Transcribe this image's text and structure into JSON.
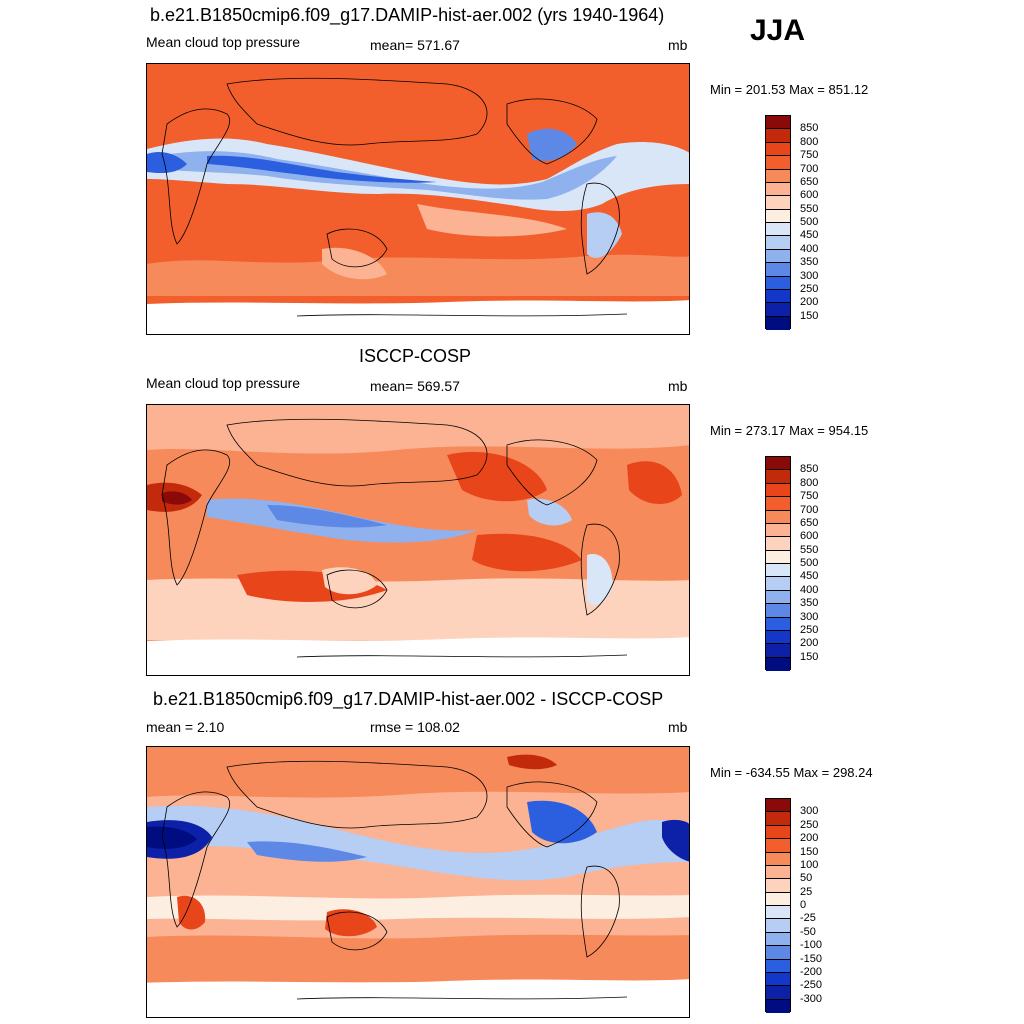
{
  "season": "JJA",
  "panels": [
    {
      "title": "b.e21.B1850cmip6.f09_g17.DAMIP-hist-aer.002 (yrs 1940-1964)",
      "left_label": "Mean cloud top pressure",
      "center_label": "mean= 571.67",
      "units": "mb",
      "minmax": "Min = 201.53 Max = 851.12",
      "levels": [
        "850",
        "800",
        "750",
        "700",
        "650",
        "600",
        "550",
        "500",
        "450",
        "400",
        "350",
        "300",
        "250",
        "200",
        "150"
      ],
      "colors": [
        "#8a0a0a",
        "#c32a0b",
        "#e8461a",
        "#f25f2c",
        "#f78a5b",
        "#fbb393",
        "#fdd3bd",
        "#fdeee2",
        "#d8e6f8",
        "#b6cdf4",
        "#8fb1ee",
        "#5d88e6",
        "#2c5ee0",
        "#1338c9",
        "#0d20a8",
        "#000d80"
      ],
      "background": "#f25f2c"
    },
    {
      "title": "ISCCP-COSP",
      "left_label": "Mean cloud top pressure",
      "center_label": "mean= 569.57",
      "units": "mb",
      "minmax": "Min = 273.17 Max = 954.15",
      "levels": [
        "850",
        "800",
        "750",
        "700",
        "650",
        "600",
        "550",
        "500",
        "450",
        "400",
        "350",
        "300",
        "250",
        "200",
        "150"
      ],
      "colors": [
        "#8a0a0a",
        "#c32a0b",
        "#e8461a",
        "#f25f2c",
        "#f78a5b",
        "#fbb393",
        "#fdd3bd",
        "#fdeee2",
        "#d8e6f8",
        "#b6cdf4",
        "#8fb1ee",
        "#5d88e6",
        "#2c5ee0",
        "#1338c9",
        "#0d20a8",
        "#000d80"
      ],
      "background": "#f78a5b"
    },
    {
      "title": "b.e21.B1850cmip6.f09_g17.DAMIP-hist-aer.002 - ISCCP-COSP",
      "left_label": "mean =   2.10",
      "center_label": "rmse = 108.02",
      "units": "mb",
      "minmax": "Min = -634.55 Max = 298.24",
      "levels": [
        "300",
        "250",
        "200",
        "150",
        "100",
        "50",
        "25",
        "0",
        "-25",
        "-50",
        "-100",
        "-150",
        "-200",
        "-250",
        "-300"
      ],
      "colors": [
        "#8a0a0a",
        "#c32a0b",
        "#e8461a",
        "#f25f2c",
        "#f78a5b",
        "#fbb393",
        "#fdd3bd",
        "#fdeee2",
        "#d8e6f8",
        "#b6cdf4",
        "#8fb1ee",
        "#5d88e6",
        "#2c5ee0",
        "#1338c9",
        "#0d20a8",
        "#000d80"
      ],
      "background": "#fbb393"
    }
  ]
}
